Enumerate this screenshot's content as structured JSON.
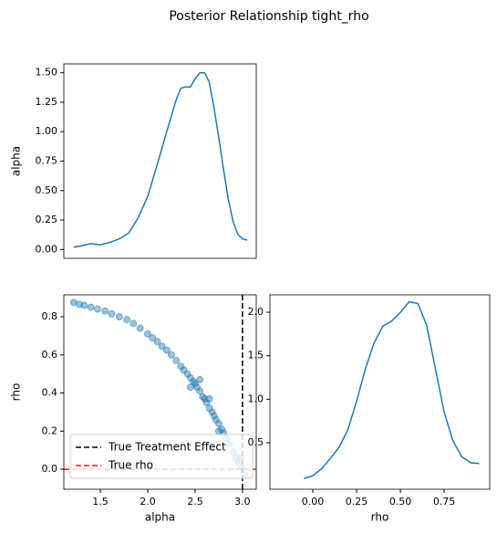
{
  "title": "Posterior Relationship tight_rho",
  "chart_data": [
    {
      "type": "line",
      "ylabel": "alpha",
      "color": "#1f77b4",
      "xlim": [
        1.115,
        3.145
      ],
      "ylim": [
        -0.075,
        1.575
      ],
      "yticks": [
        {
          "value": 0,
          "label": "0.00"
        },
        {
          "value": 0.25,
          "label": "0.25"
        },
        {
          "value": 0.5,
          "label": "0.50"
        },
        {
          "value": 0.75,
          "label": "0.75"
        },
        {
          "value": 1,
          "label": "1.00"
        },
        {
          "value": 1.25,
          "label": "1.25"
        },
        {
          "value": 1.5,
          "label": "1.50"
        }
      ],
      "x": [
        1.22,
        1.3,
        1.4,
        1.5,
        1.6,
        1.7,
        1.8,
        1.9,
        2.0,
        2.1,
        2.2,
        2.3,
        2.35,
        2.4,
        2.45,
        2.5,
        2.55,
        2.6,
        2.65,
        2.7,
        2.75,
        2.8,
        2.85,
        2.9,
        2.95,
        3.0,
        3.05
      ],
      "values": [
        0.02,
        0.03,
        0.05,
        0.04,
        0.06,
        0.09,
        0.14,
        0.27,
        0.45,
        0.72,
        1.0,
        1.27,
        1.37,
        1.38,
        1.38,
        1.45,
        1.5,
        1.5,
        1.42,
        1.2,
        0.95,
        0.68,
        0.43,
        0.24,
        0.13,
        0.09,
        0.08
      ]
    },
    {
      "type": "scatter",
      "xlabel": "alpha",
      "ylabel": "rho",
      "color": "#1f77b4",
      "xlim": [
        1.115,
        3.145
      ],
      "ylim": [
        -0.105,
        0.915
      ],
      "xticks": [
        1.5,
        {
          "value": 2,
          "label": "2.0"
        },
        2.5,
        {
          "value": 3,
          "label": "3.0"
        }
      ],
      "yticks": [
        {
          "value": 0,
          "label": "0.0"
        },
        0.2,
        0.4,
        0.6,
        0.8
      ],
      "x": [
        1.22,
        1.28,
        1.33,
        1.4,
        1.47,
        1.55,
        1.62,
        1.7,
        1.78,
        1.85,
        1.92,
        2.0,
        2.05,
        2.1,
        2.15,
        2.2,
        2.25,
        2.3,
        2.35,
        2.38,
        2.42,
        2.45,
        2.48,
        2.5,
        2.52,
        2.55,
        2.58,
        2.6,
        2.62,
        2.65,
        2.68,
        2.7,
        2.72,
        2.75,
        2.78,
        2.8,
        2.83,
        2.86,
        2.9,
        2.93,
        2.96,
        3.0,
        3.02,
        2.98,
        2.55,
        2.45,
        2.65,
        2.75
      ],
      "values": [
        0.875,
        0.865,
        0.86,
        0.85,
        0.84,
        0.83,
        0.815,
        0.8,
        0.785,
        0.765,
        0.74,
        0.71,
        0.69,
        0.67,
        0.645,
        0.625,
        0.6,
        0.57,
        0.54,
        0.52,
        0.5,
        0.48,
        0.46,
        0.45,
        0.43,
        0.41,
        0.38,
        0.37,
        0.35,
        0.32,
        0.3,
        0.28,
        0.26,
        0.24,
        0.21,
        0.19,
        0.16,
        0.13,
        0.09,
        0.06,
        0.03,
        0.01,
        -0.03,
        0.06,
        0.47,
        0.43,
        0.37,
        0.2
      ],
      "reference_lines": [
        {
          "axis": "x",
          "value": 3,
          "label": "True Treatment Effect",
          "color": "#000000"
        },
        {
          "axis": "y",
          "value": 0,
          "label": "True rho",
          "color": "#e41a1c"
        }
      ],
      "legend": "lower left"
    },
    {
      "type": "line",
      "xlabel": "rho",
      "color": "#1f77b4",
      "xlim": [
        -0.245,
        1.01
      ],
      "ylim": [
        -0.035,
        2.2
      ],
      "xticks": [
        {
          "value": 0,
          "label": "0.00"
        },
        {
          "value": 0.25,
          "label": "0.25"
        },
        {
          "value": 0.5,
          "label": "0.50"
        },
        {
          "value": 0.75,
          "label": "0.75"
        }
      ],
      "yticks": [
        0.5,
        {
          "value": 1,
          "label": "1.0"
        },
        1.5,
        {
          "value": 2,
          "label": "2.0"
        }
      ],
      "x": [
        -0.05,
        0.0,
        0.05,
        0.1,
        0.15,
        0.2,
        0.25,
        0.3,
        0.35,
        0.4,
        0.45,
        0.5,
        0.55,
        0.6,
        0.65,
        0.7,
        0.75,
        0.8,
        0.85,
        0.9,
        0.95
      ],
      "values": [
        0.09,
        0.12,
        0.2,
        0.32,
        0.45,
        0.65,
        0.98,
        1.35,
        1.65,
        1.84,
        1.9,
        2.0,
        2.12,
        2.1,
        1.85,
        1.35,
        0.85,
        0.52,
        0.34,
        0.27,
        0.26
      ]
    }
  ]
}
